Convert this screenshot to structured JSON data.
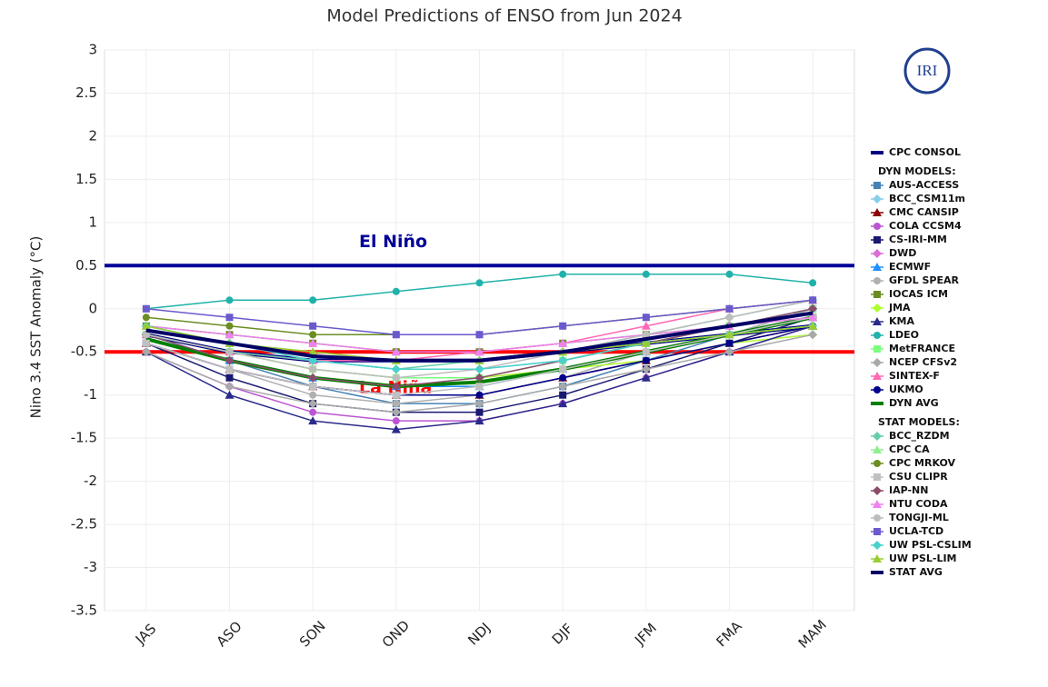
{
  "chart_data": {
    "type": "line",
    "title": "Model Predictions of ENSO from Jun 2024",
    "y_label": "Nino 3.4 SST Anomaly (°C)",
    "logo": "IRI",
    "categories": [
      "JAS",
      "ASO",
      "SON",
      "OND",
      "NDJ",
      "DJF",
      "JFM",
      "FMA",
      "MAM"
    ],
    "ylim": [
      -3.5,
      3
    ],
    "yticks": [
      3,
      2.5,
      2,
      1.5,
      1,
      0.5,
      0,
      -0.5,
      -1,
      -1.5,
      -2,
      -2.5,
      -3,
      -3.5
    ],
    "grid": true,
    "thresholds": [
      {
        "value": 0.5,
        "color": "#000099",
        "label": "El Niño"
      },
      {
        "value": -0.5,
        "color": "#ff0000",
        "label": "La Niña"
      }
    ],
    "series": [
      {
        "name": "CPC CONSOL",
        "color": "#000080",
        "line_width": 4,
        "values": [
          -0.3,
          -0.5,
          -0.6,
          -0.6,
          -0.6,
          -0.5,
          -0.4,
          -0.3,
          -0.2
        ]
      }
    ],
    "groups": [
      {
        "name": "DYN MODELS:",
        "series": [
          {
            "name": "AUS-ACCESS",
            "color": "#4682b4",
            "values": [
              -0.3,
              -0.6,
              -0.9,
              -1.1,
              -1.1,
              -0.9,
              -0.6,
              -0.3,
              0
            ]
          },
          {
            "name": "BCC_CSM11m",
            "color": "#87ceeb",
            "values": [
              -0.2,
              -0.4,
              -0.6,
              -0.7,
              -0.7,
              -0.6,
              -0.4,
              -0.2,
              0
            ]
          },
          {
            "name": "CMC CANSIP",
            "color": "#8b0000",
            "values": [
              -0.4,
              -0.7,
              -0.9,
              -1.0,
              -1.0,
              -0.8,
              -0.6,
              -0.4,
              -0.2
            ]
          },
          {
            "name": "COLA CCSM4",
            "color": "#ba55d3",
            "values": [
              -0.5,
              -0.9,
              -1.2,
              -1.3,
              -1.3,
              -1.1,
              -0.8,
              -0.5,
              -0.2
            ]
          },
          {
            "name": "CS-IRI-MM",
            "color": "#191970",
            "values": [
              -0.4,
              -0.8,
              -1.1,
              -1.2,
              -1.2,
              -1.0,
              -0.7,
              -0.4,
              -0.1
            ]
          },
          {
            "name": "DWD",
            "color": "#da70d6",
            "values": [
              -0.3,
              -0.5,
              -0.7,
              -0.8,
              -0.8,
              -0.7,
              -0.5,
              -0.3,
              -0.1
            ]
          },
          {
            "name": "ECMWF",
            "color": "#1e90ff",
            "values": [
              -0.3,
              -0.6,
              -0.8,
              -0.9,
              -0.9,
              -0.7,
              -0.5,
              -0.3,
              -0.1
            ]
          },
          {
            "name": "GFDL SPEAR",
            "color": "#b0b0b0",
            "values": [
              -0.4,
              -0.7,
              -1.0,
              -1.1,
              -1.0,
              -0.8,
              -0.5,
              -0.3,
              0
            ]
          },
          {
            "name": "IOCAS ICM",
            "color": "#6b8e23",
            "values": [
              -0.2,
              -0.3,
              -0.4,
              -0.5,
              -0.5,
              -0.4,
              -0.3,
              -0.2,
              -0.1
            ]
          },
          {
            "name": "JMA",
            "color": "#adff2f",
            "values": [
              -0.3,
              -0.5,
              -0.7,
              -0.8,
              -0.8,
              -0.7,
              -0.6,
              -0.4,
              -0.3
            ]
          },
          {
            "name": "KMA",
            "color": "#2a2a8a",
            "values": [
              -0.5,
              -1.0,
              -1.3,
              -1.4,
              -1.3,
              -1.1,
              -0.8,
              -0.5,
              -0.2
            ]
          },
          {
            "name": "LDEO",
            "color": "#20b2aa",
            "values": [
              0,
              0.1,
              0.1,
              0.2,
              0.3,
              0.4,
              0.4,
              0.4,
              0.3
            ]
          },
          {
            "name": "MetFRANCE",
            "color": "#7fff7f",
            "values": [
              -0.3,
              -0.5,
              -0.7,
              -0.8,
              -0.8,
              -0.6,
              -0.4,
              -0.2,
              0
            ]
          },
          {
            "name": "NCEP CFSv2",
            "color": "#a9a9a9",
            "values": [
              -0.5,
              -0.9,
              -1.1,
              -1.2,
              -1.1,
              -0.9,
              -0.7,
              -0.5,
              -0.3
            ]
          },
          {
            "name": "SINTEX-F",
            "color": "#ff69b4",
            "values": [
              -0.3,
              -0.5,
              -0.6,
              -0.6,
              -0.5,
              -0.4,
              -0.2,
              0,
              0.1
            ]
          },
          {
            "name": "UKMO",
            "color": "#00008b",
            "values": [
              -0.4,
              -0.7,
              -0.9,
              -1.0,
              -1.0,
              -0.8,
              -0.6,
              -0.4,
              -0.2
            ]
          },
          {
            "name": "DYN AVG",
            "color": "#008000",
            "line_width": 4,
            "values": [
              -0.35,
              -0.6,
              -0.8,
              -0.9,
              -0.85,
              -0.7,
              -0.5,
              -0.3,
              -0.1
            ]
          }
        ]
      },
      {
        "name": "STAT MODELS:",
        "series": [
          {
            "name": "BCC_RZDM",
            "color": "#66cdaa",
            "values": [
              -0.3,
              -0.5,
              -0.6,
              -0.7,
              -0.6,
              -0.5,
              -0.3,
              -0.1,
              0.1
            ]
          },
          {
            "name": "CPC CA",
            "color": "#90ee90",
            "values": [
              -0.2,
              -0.4,
              -0.5,
              -0.6,
              -0.6,
              -0.5,
              -0.4,
              -0.3,
              -0.2
            ]
          },
          {
            "name": "CPC MRKOV",
            "color": "#6b8e23",
            "values": [
              -0.1,
              -0.2,
              -0.3,
              -0.3,
              -0.3,
              -0.2,
              -0.1,
              0,
              0.1
            ]
          },
          {
            "name": "CSU CLIPR",
            "color": "#c0c0c0",
            "values": [
              -0.4,
              -0.7,
              -0.9,
              -1.0,
              -0.9,
              -0.7,
              -0.5,
              -0.3,
              -0.1
            ]
          },
          {
            "name": "IAP-NN",
            "color": "#8b4c6b",
            "values": [
              -0.3,
              -0.6,
              -0.8,
              -0.9,
              -0.8,
              -0.6,
              -0.4,
              -0.2,
              0
            ]
          },
          {
            "name": "NTU CODA",
            "color": "#ee82ee",
            "values": [
              -0.2,
              -0.3,
              -0.4,
              -0.5,
              -0.5,
              -0.4,
              -0.3,
              -0.2,
              -0.1
            ]
          },
          {
            "name": "TONGJI-ML",
            "color": "#bdbdbd",
            "values": [
              -0.3,
              -0.5,
              -0.7,
              -0.8,
              -0.7,
              -0.5,
              -0.3,
              -0.1,
              0.1
            ]
          },
          {
            "name": "UCLA-TCD",
            "color": "#6a5acd",
            "values": [
              0,
              -0.1,
              -0.2,
              -0.3,
              -0.3,
              -0.2,
              -0.1,
              0,
              0.1
            ]
          },
          {
            "name": "UW PSL-CSLIM",
            "color": "#48d1cc",
            "values": [
              -0.2,
              -0.4,
              -0.6,
              -0.7,
              -0.7,
              -0.6,
              -0.4,
              -0.3,
              -0.2
            ]
          },
          {
            "name": "UW PSL-LIM",
            "color": "#9acd32",
            "values": [
              -0.2,
              -0.4,
              -0.5,
              -0.6,
              -0.6,
              -0.5,
              -0.4,
              -0.3,
              -0.2
            ]
          },
          {
            "name": "STAT AVG",
            "color": "#000066",
            "line_width": 4,
            "values": [
              -0.25,
              -0.4,
              -0.55,
              -0.6,
              -0.6,
              -0.5,
              -0.35,
              -0.2,
              -0.05
            ]
          }
        ]
      }
    ]
  }
}
